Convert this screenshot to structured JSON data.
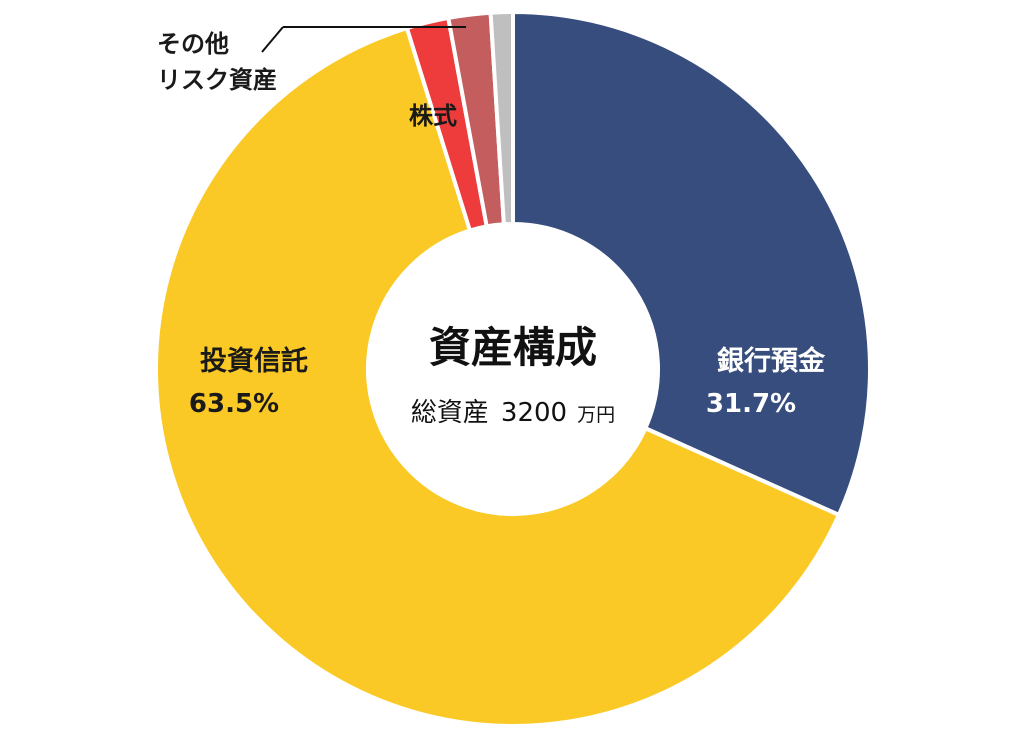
{
  "chart_data": {
    "type": "pie",
    "title": "資産構成",
    "subtitle": "総資産",
    "total_value": "3200",
    "total_unit": "万円",
    "slices": [
      {
        "name": "銀行預金",
        "value": 31.7,
        "label": "31.7%",
        "color": "#364d7e"
      },
      {
        "name": "投資信託",
        "value": 63.5,
        "label": "63.5%",
        "color": "#fbc925"
      },
      {
        "name": "株式",
        "value": 1.9,
        "color": "#ee3b3b"
      },
      {
        "name": "その他リスク資産",
        "value": 1.9,
        "color": "#c45d5d"
      },
      {
        "value": 1.0,
        "color": "#bfbfbf"
      }
    ],
    "callouts": {
      "stock": "株式",
      "other_line1": "その他",
      "other_line2": "リスク資産"
    }
  }
}
